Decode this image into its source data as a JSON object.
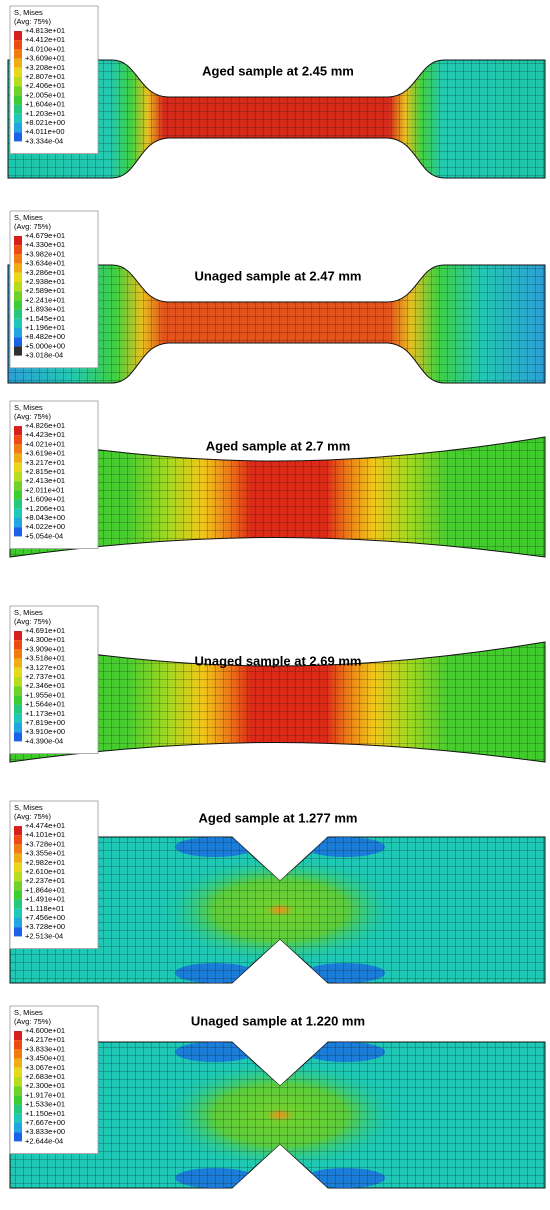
{
  "panels": [
    {
      "title": "Aged sample at 2.45 mm",
      "legend": {
        "header": "S, Mises",
        "subheader": "(Avg: 75%)",
        "labels": [
          "+4.813e+01",
          "+4.412e+01",
          "+4.010e+01",
          "+3.609e+01",
          "+3.208e+01",
          "+2.807e+01",
          "+2.406e+01",
          "+2.005e+01",
          "+1.604e+01",
          "+1.203e+01",
          "+8.021e+00",
          "+4.011e+00",
          "+3.334e-04"
        ]
      }
    },
    {
      "title": "Unaged sample at 2.47 mm",
      "legend": {
        "header": "S, Mises",
        "subheader": "(Avg: 75%)",
        "labels": [
          "+4.679e+01",
          "+4.330e+01",
          "+3.982e+01",
          "+3.634e+01",
          "+3.286e+01",
          "+2.938e+01",
          "+2.589e+01",
          "+2.241e+01",
          "+1.893e+01",
          "+1.545e+01",
          "+1.196e+01",
          "+8.482e+00",
          "+5.000e+00",
          "+3.018e-04"
        ]
      }
    },
    {
      "title": "Aged sample at 2.7 mm",
      "legend": {
        "header": "S, Mises",
        "subheader": "(Avg: 75%)",
        "labels": [
          "+4.826e+01",
          "+4.423e+01",
          "+4.021e+01",
          "+3.619e+01",
          "+3.217e+01",
          "+2.815e+01",
          "+2.413e+01",
          "+2.011e+01",
          "+1.609e+01",
          "+1.206e+01",
          "+8.043e+00",
          "+4.022e+00",
          "+5.054e-04"
        ]
      }
    },
    {
      "title": "Unaged sample at 2.69 mm",
      "legend": {
        "header": "S, Mises",
        "subheader": "(Avg: 75%)",
        "labels": [
          "+4.691e+01",
          "+4.300e+01",
          "+3.909e+01",
          "+3.518e+01",
          "+3.127e+01",
          "+2.737e+01",
          "+2.346e+01",
          "+1.955e+01",
          "+1.564e+01",
          "+1.173e+01",
          "+7.819e+00",
          "+3.910e+00",
          "+4.390e-04"
        ]
      }
    },
    {
      "title": "Aged sample at 1.277 mm",
      "legend": {
        "header": "S, Mises",
        "subheader": "(Avg: 75%)",
        "labels": [
          "+4.474e+01",
          "+4.101e+01",
          "+3.728e+01",
          "+3.355e+01",
          "+2.982e+01",
          "+2.610e+01",
          "+2.237e+01",
          "+1.864e+01",
          "+1.491e+01",
          "+1.118e+01",
          "+7.456e+00",
          "+3.728e+00",
          "+2.513e-04"
        ]
      }
    },
    {
      "title": "Unaged sample at 1.220 mm",
      "legend": {
        "header": "S, Mises",
        "subheader": "(Avg: 75%)",
        "labels": [
          "+4.600e+01",
          "+4.217e+01",
          "+3.833e+01",
          "+3.450e+01",
          "+3.067e+01",
          "+2.683e+01",
          "+2.300e+01",
          "+1.917e+01",
          "+1.533e+01",
          "+1.150e+01",
          "+7.667e+00",
          "+3.833e+00",
          "+2.644e-04"
        ]
      }
    }
  ]
}
